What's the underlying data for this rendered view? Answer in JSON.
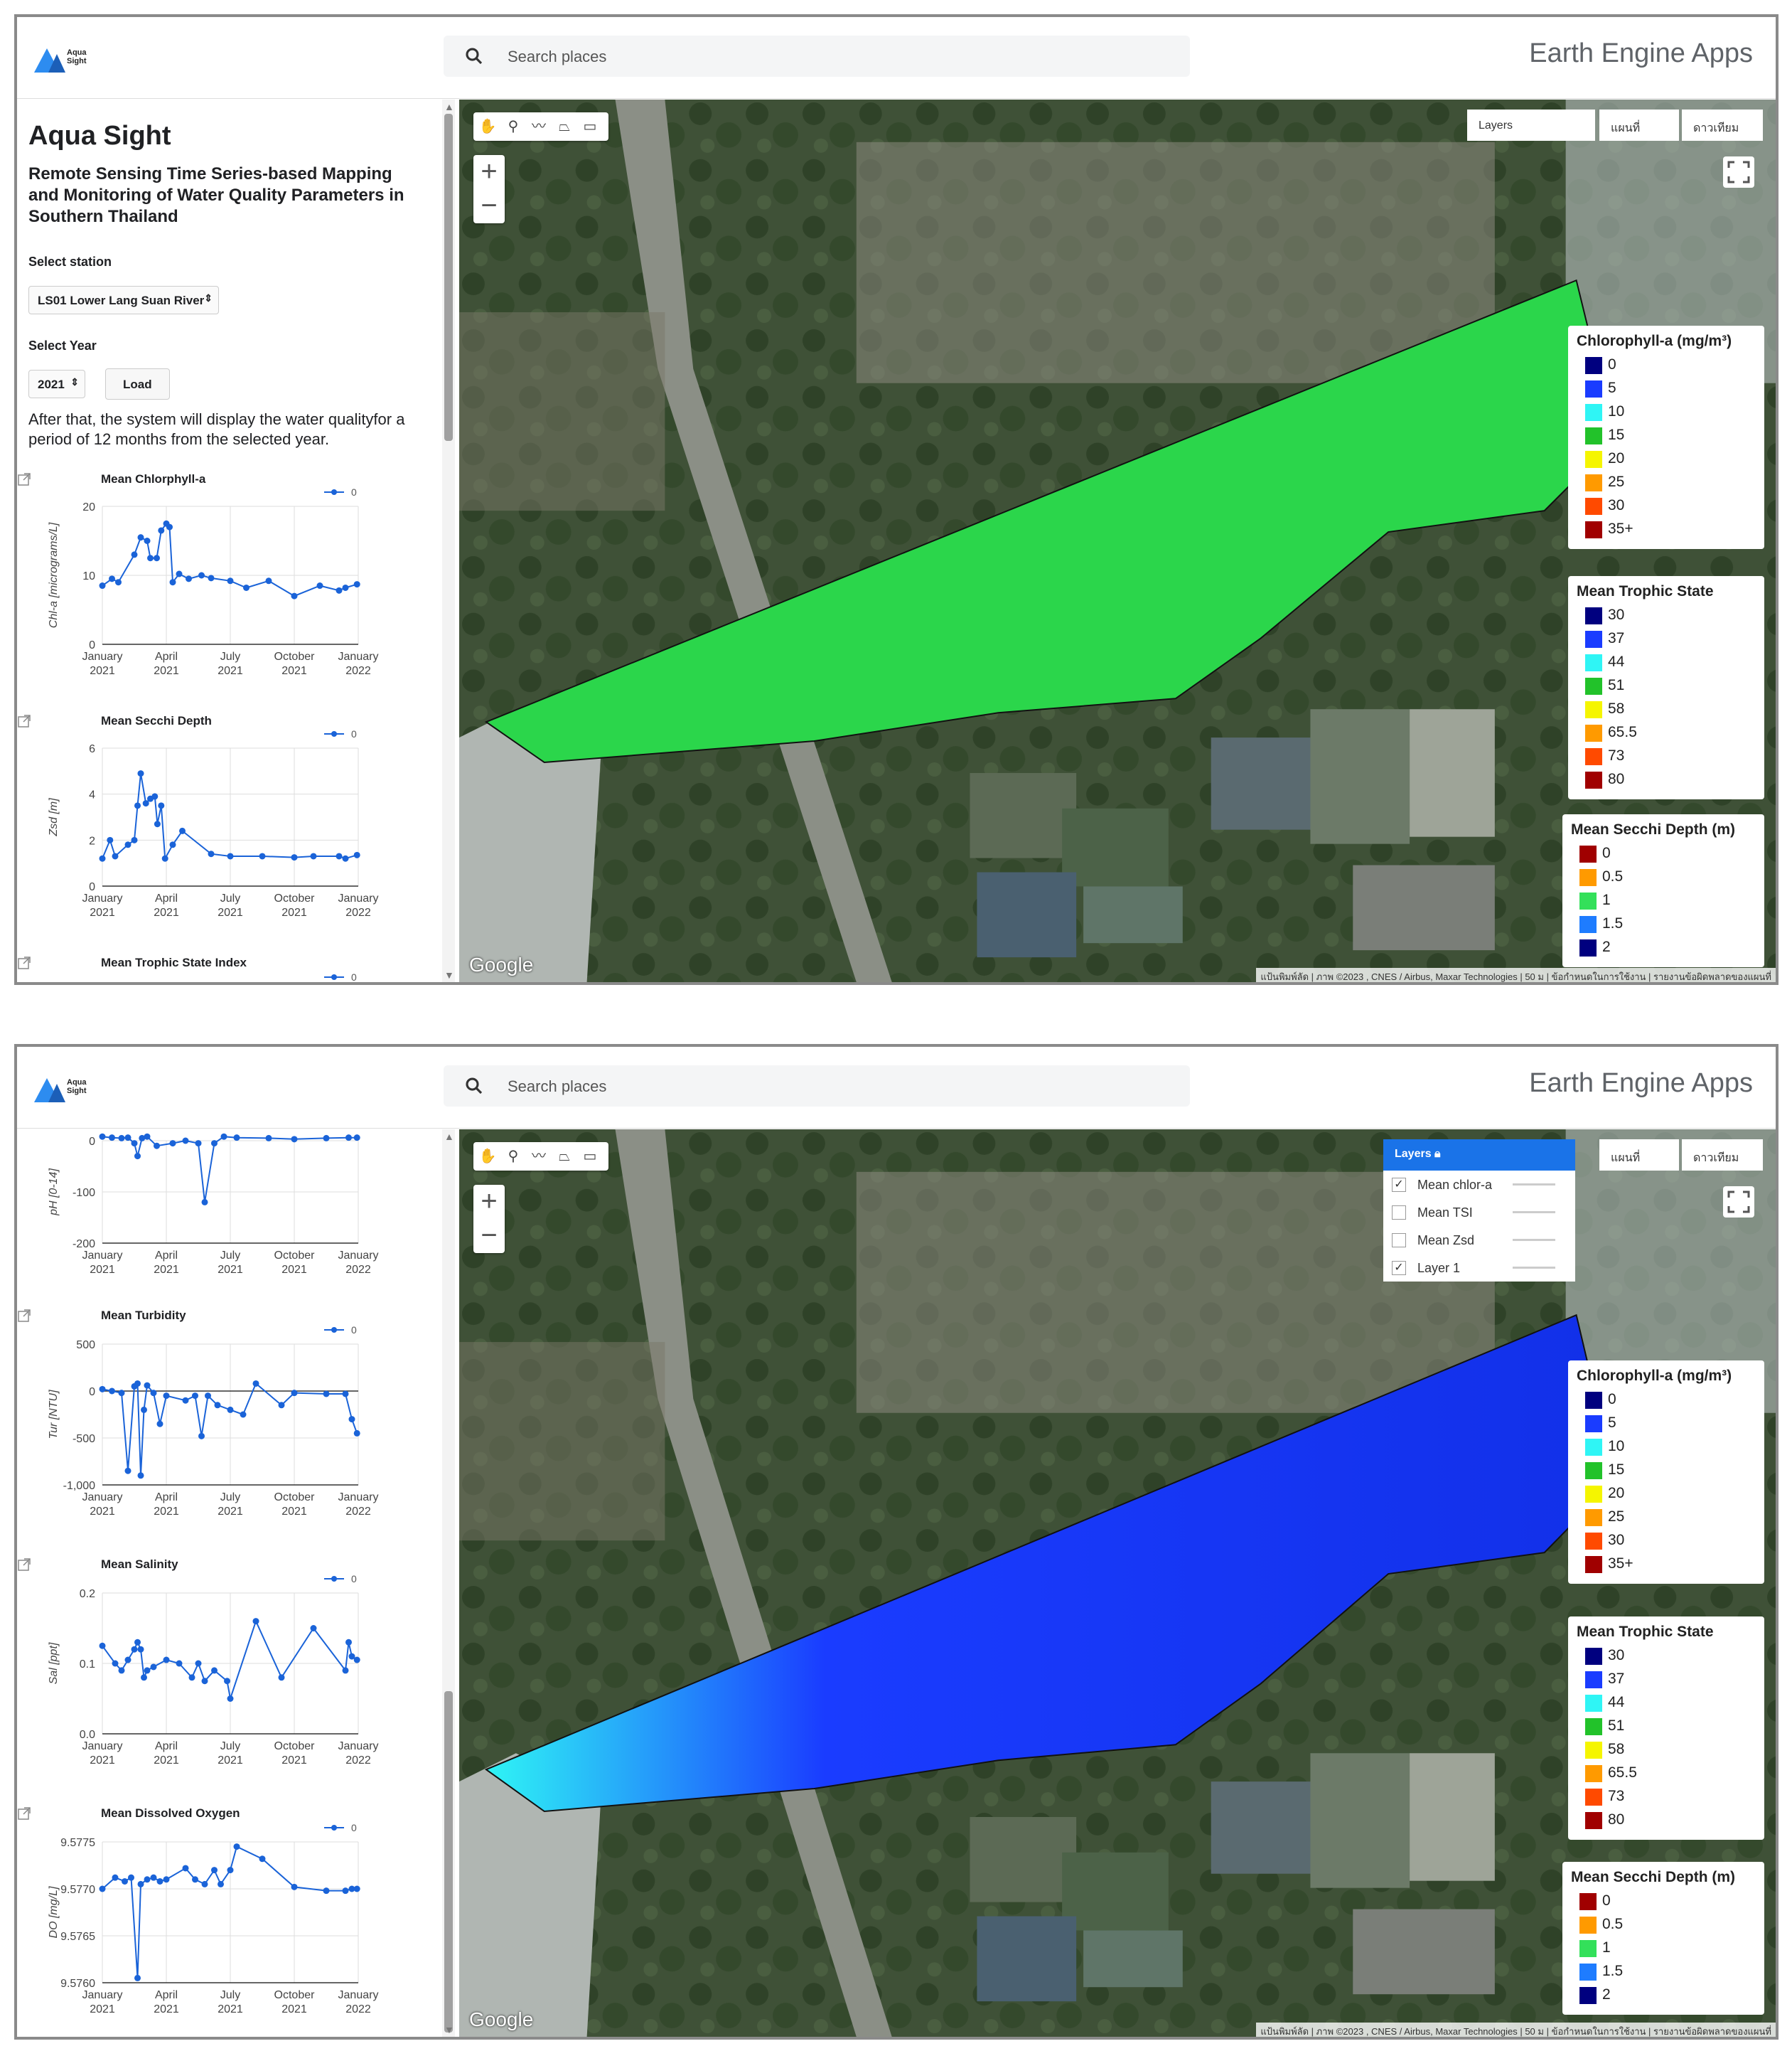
{
  "app": {
    "logo_text": "Aqua Sight",
    "search_placeholder": "Search places",
    "brand": "Earth Engine Apps"
  },
  "panel": {
    "title": "Aqua Sight",
    "subtitle": "Remote Sensing Time Series-based Mapping and Monitoring of Water Quality Parameters in Southern Thailand",
    "station_label": "Select station",
    "station_value": "LS01 Lower Lang Suan River",
    "year_label": "Select Year",
    "year_value": "2021",
    "load_button": "Load",
    "description": "After that, the system will display the water qualityfor a period of 12 months from the selected year."
  },
  "map": {
    "layers_button": "Layers",
    "map_type_map": "แผนที่",
    "map_type_satellite": "ดาวเทียม",
    "google": "Google",
    "attribution": "แป้นพิมพ์ลัด | ภาพ ©2023 , CNES / Airbus, Maxar Technologies | 50 ม | ข้อกำหนดในการใช้งาน | รายงานข้อผิดพลาดของแผนที่"
  },
  "layers_panel": {
    "header": "Layers",
    "items": [
      {
        "label": "Mean chlor-a",
        "checked": true
      },
      {
        "label": "Mean TSI",
        "checked": false
      },
      {
        "label": "Mean Zsd",
        "checked": false
      },
      {
        "label": "Layer 1",
        "checked": true
      }
    ]
  },
  "legends": {
    "chlorophyll": {
      "title": "Chlorophyll-a (mg/m³)",
      "items": [
        {
          "label": "0",
          "color": "#00007f"
        },
        {
          "label": "5",
          "color": "#1a3cff"
        },
        {
          "label": "10",
          "color": "#2ff5f5"
        },
        {
          "label": "15",
          "color": "#22c22a"
        },
        {
          "label": "20",
          "color": "#f5f500"
        },
        {
          "label": "25",
          "color": "#ff9a00"
        },
        {
          "label": "30",
          "color": "#ff4a00"
        },
        {
          "label": "35+",
          "color": "#a00000"
        }
      ]
    },
    "trophic": {
      "title": "Mean Trophic State",
      "items": [
        {
          "label": "30",
          "color": "#00007f"
        },
        {
          "label": "37",
          "color": "#1a3cff"
        },
        {
          "label": "44",
          "color": "#2ff5f5"
        },
        {
          "label": "51",
          "color": "#22c22a"
        },
        {
          "label": "58",
          "color": "#f5f500"
        },
        {
          "label": "65.5",
          "color": "#ff9a00"
        },
        {
          "label": "73",
          "color": "#ff4a00"
        },
        {
          "label": "80",
          "color": "#a00000"
        }
      ]
    },
    "secchi": {
      "title": "Mean Secchi Depth (m)",
      "items": [
        {
          "label": "0",
          "color": "#a00000"
        },
        {
          "label": "0.5",
          "color": "#ff9a00"
        },
        {
          "label": "1",
          "color": "#33e05a"
        },
        {
          "label": "1.5",
          "color": "#1e7cff"
        },
        {
          "label": "2",
          "color": "#00007f"
        }
      ]
    }
  },
  "chart_data": [
    {
      "type": "line",
      "title": "Mean Chlorphyll-a",
      "ylabel": "Chl-a [micrograms/L]",
      "legend": "0",
      "ylim": [
        0,
        20
      ],
      "yticks": [
        "20",
        "10",
        "0"
      ],
      "xticks": [
        "January 2021",
        "April 2021",
        "July 2021",
        "October 2021",
        "January 2022"
      ],
      "series": [
        {
          "name": "0",
          "points": [
            [
              0,
              8.5
            ],
            [
              0.15,
              9.5
            ],
            [
              0.25,
              9
            ],
            [
              0.5,
              13
            ],
            [
              0.6,
              15.5
            ],
            [
              0.7,
              15
            ],
            [
              0.75,
              12.5
            ],
            [
              0.85,
              12.5
            ],
            [
              0.92,
              16.5
            ],
            [
              1.0,
              17.5
            ],
            [
              1.05,
              17
            ],
            [
              1.1,
              9
            ],
            [
              1.2,
              10.2
            ],
            [
              1.35,
              9.5
            ],
            [
              1.55,
              10
            ],
            [
              1.7,
              9.6
            ],
            [
              2.0,
              9.2
            ],
            [
              2.25,
              8.2
            ],
            [
              2.6,
              9.2
            ],
            [
              3.0,
              7
            ],
            [
              3.4,
              8.5
            ],
            [
              3.7,
              7.8
            ],
            [
              3.8,
              8.2
            ],
            [
              3.98,
              8.7
            ]
          ]
        }
      ]
    },
    {
      "type": "line",
      "title": "Mean Secchi Depth",
      "ylabel": "Zsd [m]",
      "legend": "0",
      "ylim": [
        0,
        6
      ],
      "yticks": [
        "6",
        "4",
        "2",
        "0"
      ],
      "xticks": [
        "January 2021",
        "April 2021",
        "July 2021",
        "October 2021",
        "January 2022"
      ],
      "series": [
        {
          "name": "0",
          "points": [
            [
              0,
              1.2
            ],
            [
              0.12,
              2.0
            ],
            [
              0.2,
              1.3
            ],
            [
              0.4,
              1.8
            ],
            [
              0.5,
              2.0
            ],
            [
              0.55,
              3.5
            ],
            [
              0.6,
              4.9
            ],
            [
              0.68,
              3.6
            ],
            [
              0.75,
              3.8
            ],
            [
              0.82,
              3.9
            ],
            [
              0.86,
              2.7
            ],
            [
              0.92,
              3.5
            ],
            [
              0.98,
              1.2
            ],
            [
              1.1,
              1.8
            ],
            [
              1.25,
              2.4
            ],
            [
              1.7,
              1.4
            ],
            [
              2.0,
              1.3
            ],
            [
              2.5,
              1.3
            ],
            [
              3.0,
              1.25
            ],
            [
              3.3,
              1.3
            ],
            [
              3.7,
              1.3
            ],
            [
              3.8,
              1.2
            ],
            [
              3.98,
              1.35
            ]
          ]
        }
      ]
    },
    {
      "type": "line",
      "title": "Mean Trophic State Index",
      "legend": "0"
    },
    {
      "type": "line",
      "title": "",
      "ylabel": "pH [0-14]",
      "ylim": [
        -200,
        0
      ],
      "yticks": [
        "0",
        "-100",
        "-200"
      ],
      "xticks": [
        "January 2021",
        "April 2021",
        "July 2021",
        "October 2021",
        "January 2022"
      ],
      "series": [
        {
          "name": "0",
          "points": [
            [
              0,
              8
            ],
            [
              0.15,
              6
            ],
            [
              0.3,
              5
            ],
            [
              0.4,
              6
            ],
            [
              0.5,
              -5
            ],
            [
              0.55,
              -30
            ],
            [
              0.62,
              5
            ],
            [
              0.7,
              8
            ],
            [
              0.85,
              -10
            ],
            [
              1.1,
              -5
            ],
            [
              1.3,
              0
            ],
            [
              1.5,
              -5
            ],
            [
              1.6,
              -120
            ],
            [
              1.75,
              -5
            ],
            [
              1.9,
              8
            ],
            [
              2.1,
              6
            ],
            [
              2.6,
              5
            ],
            [
              3.0,
              3
            ],
            [
              3.5,
              5
            ],
            [
              3.85,
              6
            ],
            [
              3.98,
              6
            ]
          ]
        }
      ]
    },
    {
      "type": "line",
      "title": "Mean Turbidity",
      "ylabel": "Tur [NTU]",
      "legend": "0",
      "ylim": [
        -1000,
        500
      ],
      "yticks": [
        "500",
        "0",
        "-500",
        "-1,000"
      ],
      "xticks": [
        "January 2021",
        "April 2021",
        "July 2021",
        "October 2021",
        "January 2022"
      ],
      "series": [
        {
          "name": "0",
          "points": [
            [
              0,
              20
            ],
            [
              0.15,
              0
            ],
            [
              0.3,
              -20
            ],
            [
              0.4,
              -850
            ],
            [
              0.5,
              50
            ],
            [
              0.55,
              80
            ],
            [
              0.6,
              -900
            ],
            [
              0.65,
              -200
            ],
            [
              0.7,
              60
            ],
            [
              0.8,
              -20
            ],
            [
              0.9,
              -350
            ],
            [
              1.0,
              -50
            ],
            [
              1.3,
              -100
            ],
            [
              1.45,
              -50
            ],
            [
              1.55,
              -480
            ],
            [
              1.65,
              -50
            ],
            [
              1.8,
              -150
            ],
            [
              2.0,
              -200
            ],
            [
              2.2,
              -250
            ],
            [
              2.4,
              80
            ],
            [
              2.8,
              -150
            ],
            [
              3.0,
              -20
            ],
            [
              3.5,
              -30
            ],
            [
              3.8,
              -30
            ],
            [
              3.9,
              -300
            ],
            [
              3.98,
              -450
            ]
          ]
        }
      ]
    },
    {
      "type": "line",
      "title": "Mean Salinity",
      "ylabel": "Sal [ppt]",
      "legend": "0",
      "ylim": [
        0,
        0.2
      ],
      "yticks": [
        "0.2",
        "0.1",
        "0.0"
      ],
      "xticks": [
        "January 2021",
        "April 2021",
        "July 2021",
        "October 2021",
        "January 2022"
      ],
      "series": [
        {
          "name": "0",
          "points": [
            [
              0,
              0.125
            ],
            [
              0.2,
              0.1
            ],
            [
              0.3,
              0.09
            ],
            [
              0.4,
              0.105
            ],
            [
              0.5,
              0.12
            ],
            [
              0.55,
              0.13
            ],
            [
              0.6,
              0.12
            ],
            [
              0.65,
              0.08
            ],
            [
              0.7,
              0.09
            ],
            [
              0.8,
              0.095
            ],
            [
              1.0,
              0.105
            ],
            [
              1.2,
              0.1
            ],
            [
              1.4,
              0.08
            ],
            [
              1.5,
              0.1
            ],
            [
              1.6,
              0.075
            ],
            [
              1.75,
              0.09
            ],
            [
              1.95,
              0.075
            ],
            [
              2.0,
              0.05
            ],
            [
              2.4,
              0.16
            ],
            [
              2.8,
              0.08
            ],
            [
              3.3,
              0.15
            ],
            [
              3.8,
              0.09
            ],
            [
              3.85,
              0.13
            ],
            [
              3.9,
              0.11
            ],
            [
              3.98,
              0.105
            ]
          ]
        }
      ]
    },
    {
      "type": "line",
      "title": "Mean Dissolved Oxygen",
      "ylabel": "DO [mg/L]",
      "legend": "0",
      "ylim": [
        9.576,
        9.5775
      ],
      "yticks": [
        "9.5775",
        "9.5770",
        "9.5765",
        "9.5760"
      ],
      "xticks": [
        "January 2021",
        "April 2021",
        "July 2021",
        "October 2021",
        "January 2022"
      ],
      "series": [
        {
          "name": "0",
          "points": [
            [
              0,
              9.577
            ],
            [
              0.2,
              9.57712
            ],
            [
              0.35,
              9.57708
            ],
            [
              0.45,
              9.57712
            ],
            [
              0.55,
              9.57605
            ],
            [
              0.6,
              9.57705
            ],
            [
              0.7,
              9.5771
            ],
            [
              0.8,
              9.57712
            ],
            [
              0.9,
              9.57708
            ],
            [
              1.0,
              9.5771
            ],
            [
              1.3,
              9.57722
            ],
            [
              1.45,
              9.5771
            ],
            [
              1.6,
              9.57705
            ],
            [
              1.75,
              9.5772
            ],
            [
              1.85,
              9.57705
            ],
            [
              2.0,
              9.5772
            ],
            [
              2.1,
              9.57745
            ],
            [
              2.5,
              9.57732
            ],
            [
              3.0,
              9.57702
            ],
            [
              3.5,
              9.57698
            ],
            [
              3.8,
              9.57698
            ],
            [
              3.9,
              9.577
            ],
            [
              3.98,
              9.577
            ]
          ]
        }
      ]
    }
  ]
}
